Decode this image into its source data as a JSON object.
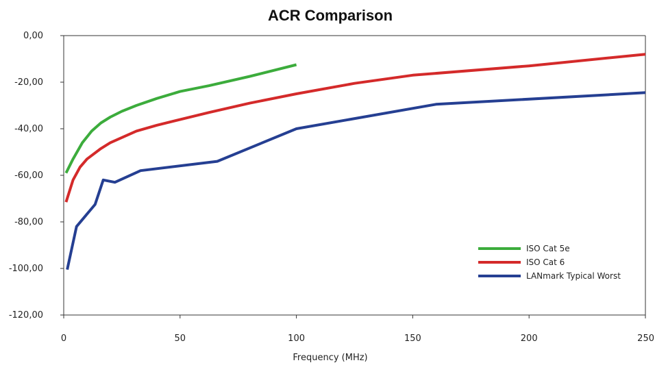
{
  "chart_data": {
    "type": "line",
    "title": "ACR Comparison",
    "xlabel": "Frequency (MHz)",
    "ylabel": "",
    "xlim": [
      0,
      250
    ],
    "ylim": [
      -120,
      0
    ],
    "x_ticks": [
      0,
      50,
      100,
      150,
      200,
      250
    ],
    "x_tick_labels": [
      "0",
      "50",
      "100",
      "150",
      "200",
      "250"
    ],
    "y_ticks": [
      0,
      -20,
      -40,
      -60,
      -80,
      -100,
      -120
    ],
    "y_tick_labels": [
      "0,00",
      "-20,00",
      "-40,00",
      "-60,00",
      "-80,00",
      "-100,00",
      "-120,00"
    ],
    "grid": false,
    "legend_position": "bottom-right",
    "series": [
      {
        "name": "ISO Cat 5e",
        "color": "#3cac3c",
        "points": [
          [
            1,
            -59
          ],
          [
            4,
            -53
          ],
          [
            8,
            -46
          ],
          [
            12,
            -41
          ],
          [
            16,
            -37.5
          ],
          [
            20,
            -35
          ],
          [
            25,
            -32.5
          ],
          [
            31.25,
            -30
          ],
          [
            40,
            -27
          ],
          [
            50,
            -24
          ],
          [
            62.5,
            -21.5
          ],
          [
            80,
            -17.5
          ],
          [
            100,
            -12.5
          ]
        ]
      },
      {
        "name": "ISO Cat 6",
        "color": "#d42a2a",
        "points": [
          [
            1,
            -71.5
          ],
          [
            4,
            -62
          ],
          [
            7,
            -56.5
          ],
          [
            10,
            -53
          ],
          [
            16,
            -48.5
          ],
          [
            20,
            -46
          ],
          [
            31.25,
            -41
          ],
          [
            40,
            -38.5
          ],
          [
            62.5,
            -33
          ],
          [
            80,
            -29
          ],
          [
            100,
            -25
          ],
          [
            125,
            -20.5
          ],
          [
            150,
            -17
          ],
          [
            200,
            -13
          ],
          [
            250,
            -8
          ]
        ]
      },
      {
        "name": "LANmark Typical Worst",
        "color": "#253f92",
        "points": [
          [
            1.5,
            -100.5
          ],
          [
            5.5,
            -82
          ],
          [
            13.5,
            -72.5
          ],
          [
            17,
            -62
          ],
          [
            22,
            -63
          ],
          [
            33,
            -58
          ],
          [
            66,
            -54
          ],
          [
            100,
            -40
          ],
          [
            160,
            -29.5
          ],
          [
            250,
            -24.5
          ]
        ]
      }
    ]
  }
}
